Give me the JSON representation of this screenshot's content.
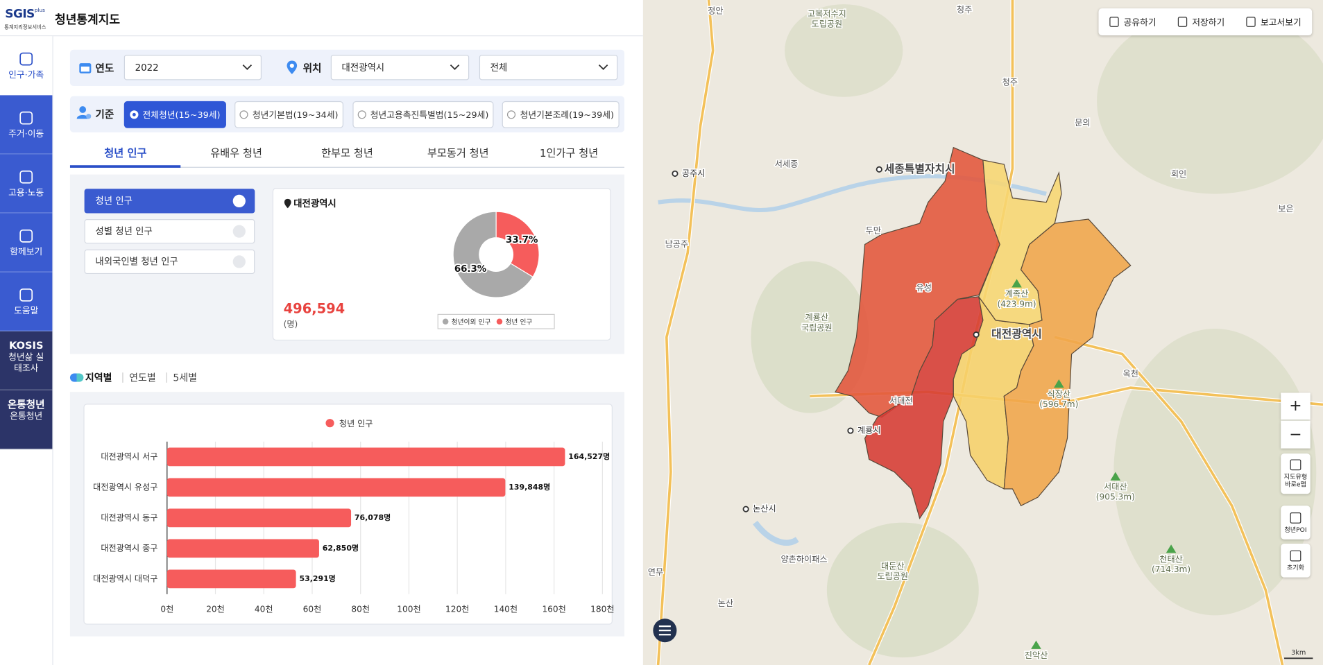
{
  "header": {
    "logo": "SGIS",
    "logo_plus": "plus",
    "logo_sub": "통계지리정보서비스",
    "title": "청년통계지도"
  },
  "nav": {
    "active": 0,
    "items": [
      {
        "label": "인구·가족"
      },
      {
        "label": "주거·이동"
      },
      {
        "label": "고용·노동"
      },
      {
        "label": "함께보기"
      },
      {
        "label": "도움말"
      },
      {
        "title": "KOSIS",
        "label": "청년삶 실태조사"
      },
      {
        "title": "온통청년",
        "label": "온통청년"
      }
    ]
  },
  "filters": {
    "year": {
      "label": "연도",
      "value": "2022"
    },
    "location": {
      "label": "위치",
      "sido": "대전광역시",
      "sgg": "전체"
    },
    "basis": {
      "label": "기준",
      "selected": 0,
      "options": [
        "전체청년(15~39세)",
        "청년기본법(19~34세)",
        "청년고용촉진특별법(15~29세)",
        "청년기본조례(19~39세)"
      ]
    }
  },
  "tabs": {
    "active": 0,
    "items": [
      "청년 인구",
      "유배우 청년",
      "한부모 청년",
      "부모동거 청년",
      "1인가구 청년"
    ]
  },
  "side_menu": {
    "active": 0,
    "items": [
      "청년 인구",
      "성별 청년 인구",
      "내외국인별 청년 인구"
    ]
  },
  "view_tabs": {
    "active": 0,
    "items": [
      "지역별",
      "연도별",
      "5세별"
    ]
  },
  "chart_data": [
    {
      "type": "pie",
      "title": "대전광역시",
      "total_label": "496,594",
      "unit": "(명)",
      "categories": [
        "청년이외 인구",
        "청년 인구"
      ],
      "values": [
        66.3,
        33.7
      ],
      "value_labels": [
        "66.3%",
        "33.7%"
      ],
      "colors": [
        "#a9a9a9",
        "#f65c5c"
      ],
      "legend": "bottom-right"
    },
    {
      "type": "bar",
      "orientation": "horizontal",
      "categories": [
        "대전광역시 서구",
        "대전광역시 유성구",
        "대전광역시 동구",
        "대전광역시 중구",
        "대전광역시 대덕구"
      ],
      "series": [
        {
          "name": "청년 인구",
          "color": "#f65c5c",
          "values": [
            164527,
            139848,
            76078,
            62850,
            53291
          ],
          "value_labels": [
            "164,527명",
            "139,848명",
            "76,078명",
            "62,850명",
            "53,291명"
          ]
        }
      ],
      "xlim": [
        0,
        180000
      ],
      "xticks": [
        {
          "value": 0,
          "label": "0천"
        },
        {
          "value": 20000,
          "label": "20천"
        },
        {
          "value": 40000,
          "label": "40천"
        },
        {
          "value": 60000,
          "label": "60천"
        },
        {
          "value": 80000,
          "label": "80천"
        },
        {
          "value": 100000,
          "label": "100천"
        },
        {
          "value": 120000,
          "label": "120천"
        },
        {
          "value": 140000,
          "label": "140천"
        },
        {
          "value": 160000,
          "label": "160천"
        },
        {
          "value": 180000,
          "label": "180천"
        }
      ],
      "grid": true,
      "legend": "top"
    }
  ],
  "map": {
    "toolbar": [
      "공유하기",
      "저장하기",
      "보고서보기"
    ],
    "controls": [
      "+",
      "−",
      "지도유형 바로e맵",
      "청년POI",
      "초기화"
    ],
    "scale": "3km",
    "labels": [
      {
        "text": "정안",
        "kind": "town"
      },
      {
        "text": "고복저수지",
        "sub": "도립공원",
        "kind": "park"
      },
      {
        "text": "청주",
        "kind": "town"
      },
      {
        "text": "청주",
        "kind": "town"
      },
      {
        "text": "문의",
        "kind": "town"
      },
      {
        "text": "세종특별자치시",
        "kind": "city"
      },
      {
        "text": "공주시",
        "kind": "dot"
      },
      {
        "text": "서세종",
        "kind": "town"
      },
      {
        "text": "회인",
        "kind": "town"
      },
      {
        "text": "보은",
        "kind": "town"
      },
      {
        "text": "두만",
        "kind": "town"
      },
      {
        "text": "남공주",
        "kind": "town"
      },
      {
        "text": "유성",
        "kind": "town"
      },
      {
        "text": "계족산",
        "sub": "(423.9m)",
        "kind": "peak"
      },
      {
        "text": "계룡산",
        "sub": "국립공원",
        "kind": "park"
      },
      {
        "text": "대전광역시",
        "kind": "city"
      },
      {
        "text": "옥천",
        "kind": "town"
      },
      {
        "text": "식장산",
        "sub": "(596.7m)",
        "kind": "peak"
      },
      {
        "text": "서대전",
        "kind": "town"
      },
      {
        "text": "계룡시",
        "kind": "dot"
      },
      {
        "text": "논산시",
        "kind": "dot"
      },
      {
        "text": "서대산",
        "sub": "(905.3m)",
        "kind": "peak"
      },
      {
        "text": "양촌하이패스",
        "kind": "town"
      },
      {
        "text": "대둔산",
        "sub": "도립공원",
        "kind": "park"
      },
      {
        "text": "천태산",
        "sub": "(714.3m)",
        "kind": "peak"
      },
      {
        "text": "연무",
        "kind": "town"
      },
      {
        "text": "논산",
        "kind": "town"
      },
      {
        "text": "진악산",
        "kind": "peak"
      }
    ]
  }
}
